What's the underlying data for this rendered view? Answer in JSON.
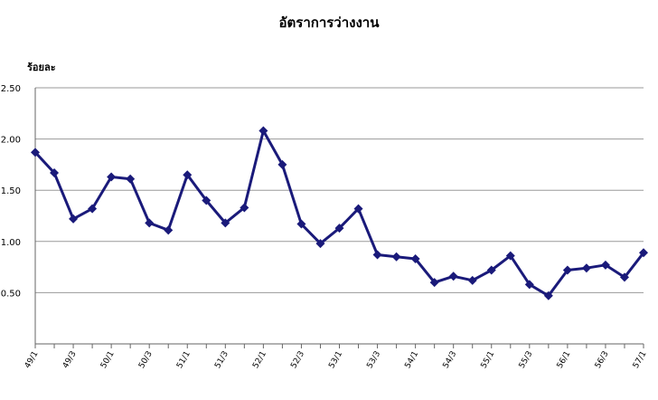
{
  "chart_data": {
    "type": "line",
    "title": "อัตราการว่างงาน",
    "xlabel": "",
    "ylabel": "ร้อยละ",
    "ylim": [
      0,
      2.5
    ],
    "yticks": [
      "0.50",
      "1.00",
      "1.50",
      "2.00",
      "2.50"
    ],
    "grid": true,
    "x_tick_labels": [
      "49/1",
      "49/3",
      "50/1",
      "50/3",
      "51/1",
      "51/3",
      "52/1",
      "52/3",
      "53/1",
      "53/3",
      "54/1",
      "54/3",
      "55/1",
      "55/3",
      "56/1",
      "56/3",
      "57/1"
    ],
    "series": [
      {
        "color": "#1a1a7a",
        "marker": "diamond",
        "values": [
          1.87,
          1.67,
          1.22,
          1.32,
          1.63,
          1.61,
          1.18,
          1.11,
          1.65,
          1.4,
          1.18,
          1.33,
          2.08,
          1.75,
          1.17,
          0.98,
          1.13,
          1.32,
          0.87,
          0.85,
          0.83,
          0.6,
          0.66,
          0.62,
          0.72,
          0.86,
          0.58,
          0.47,
          0.72,
          0.74,
          0.77,
          0.65,
          0.89
        ]
      }
    ]
  }
}
